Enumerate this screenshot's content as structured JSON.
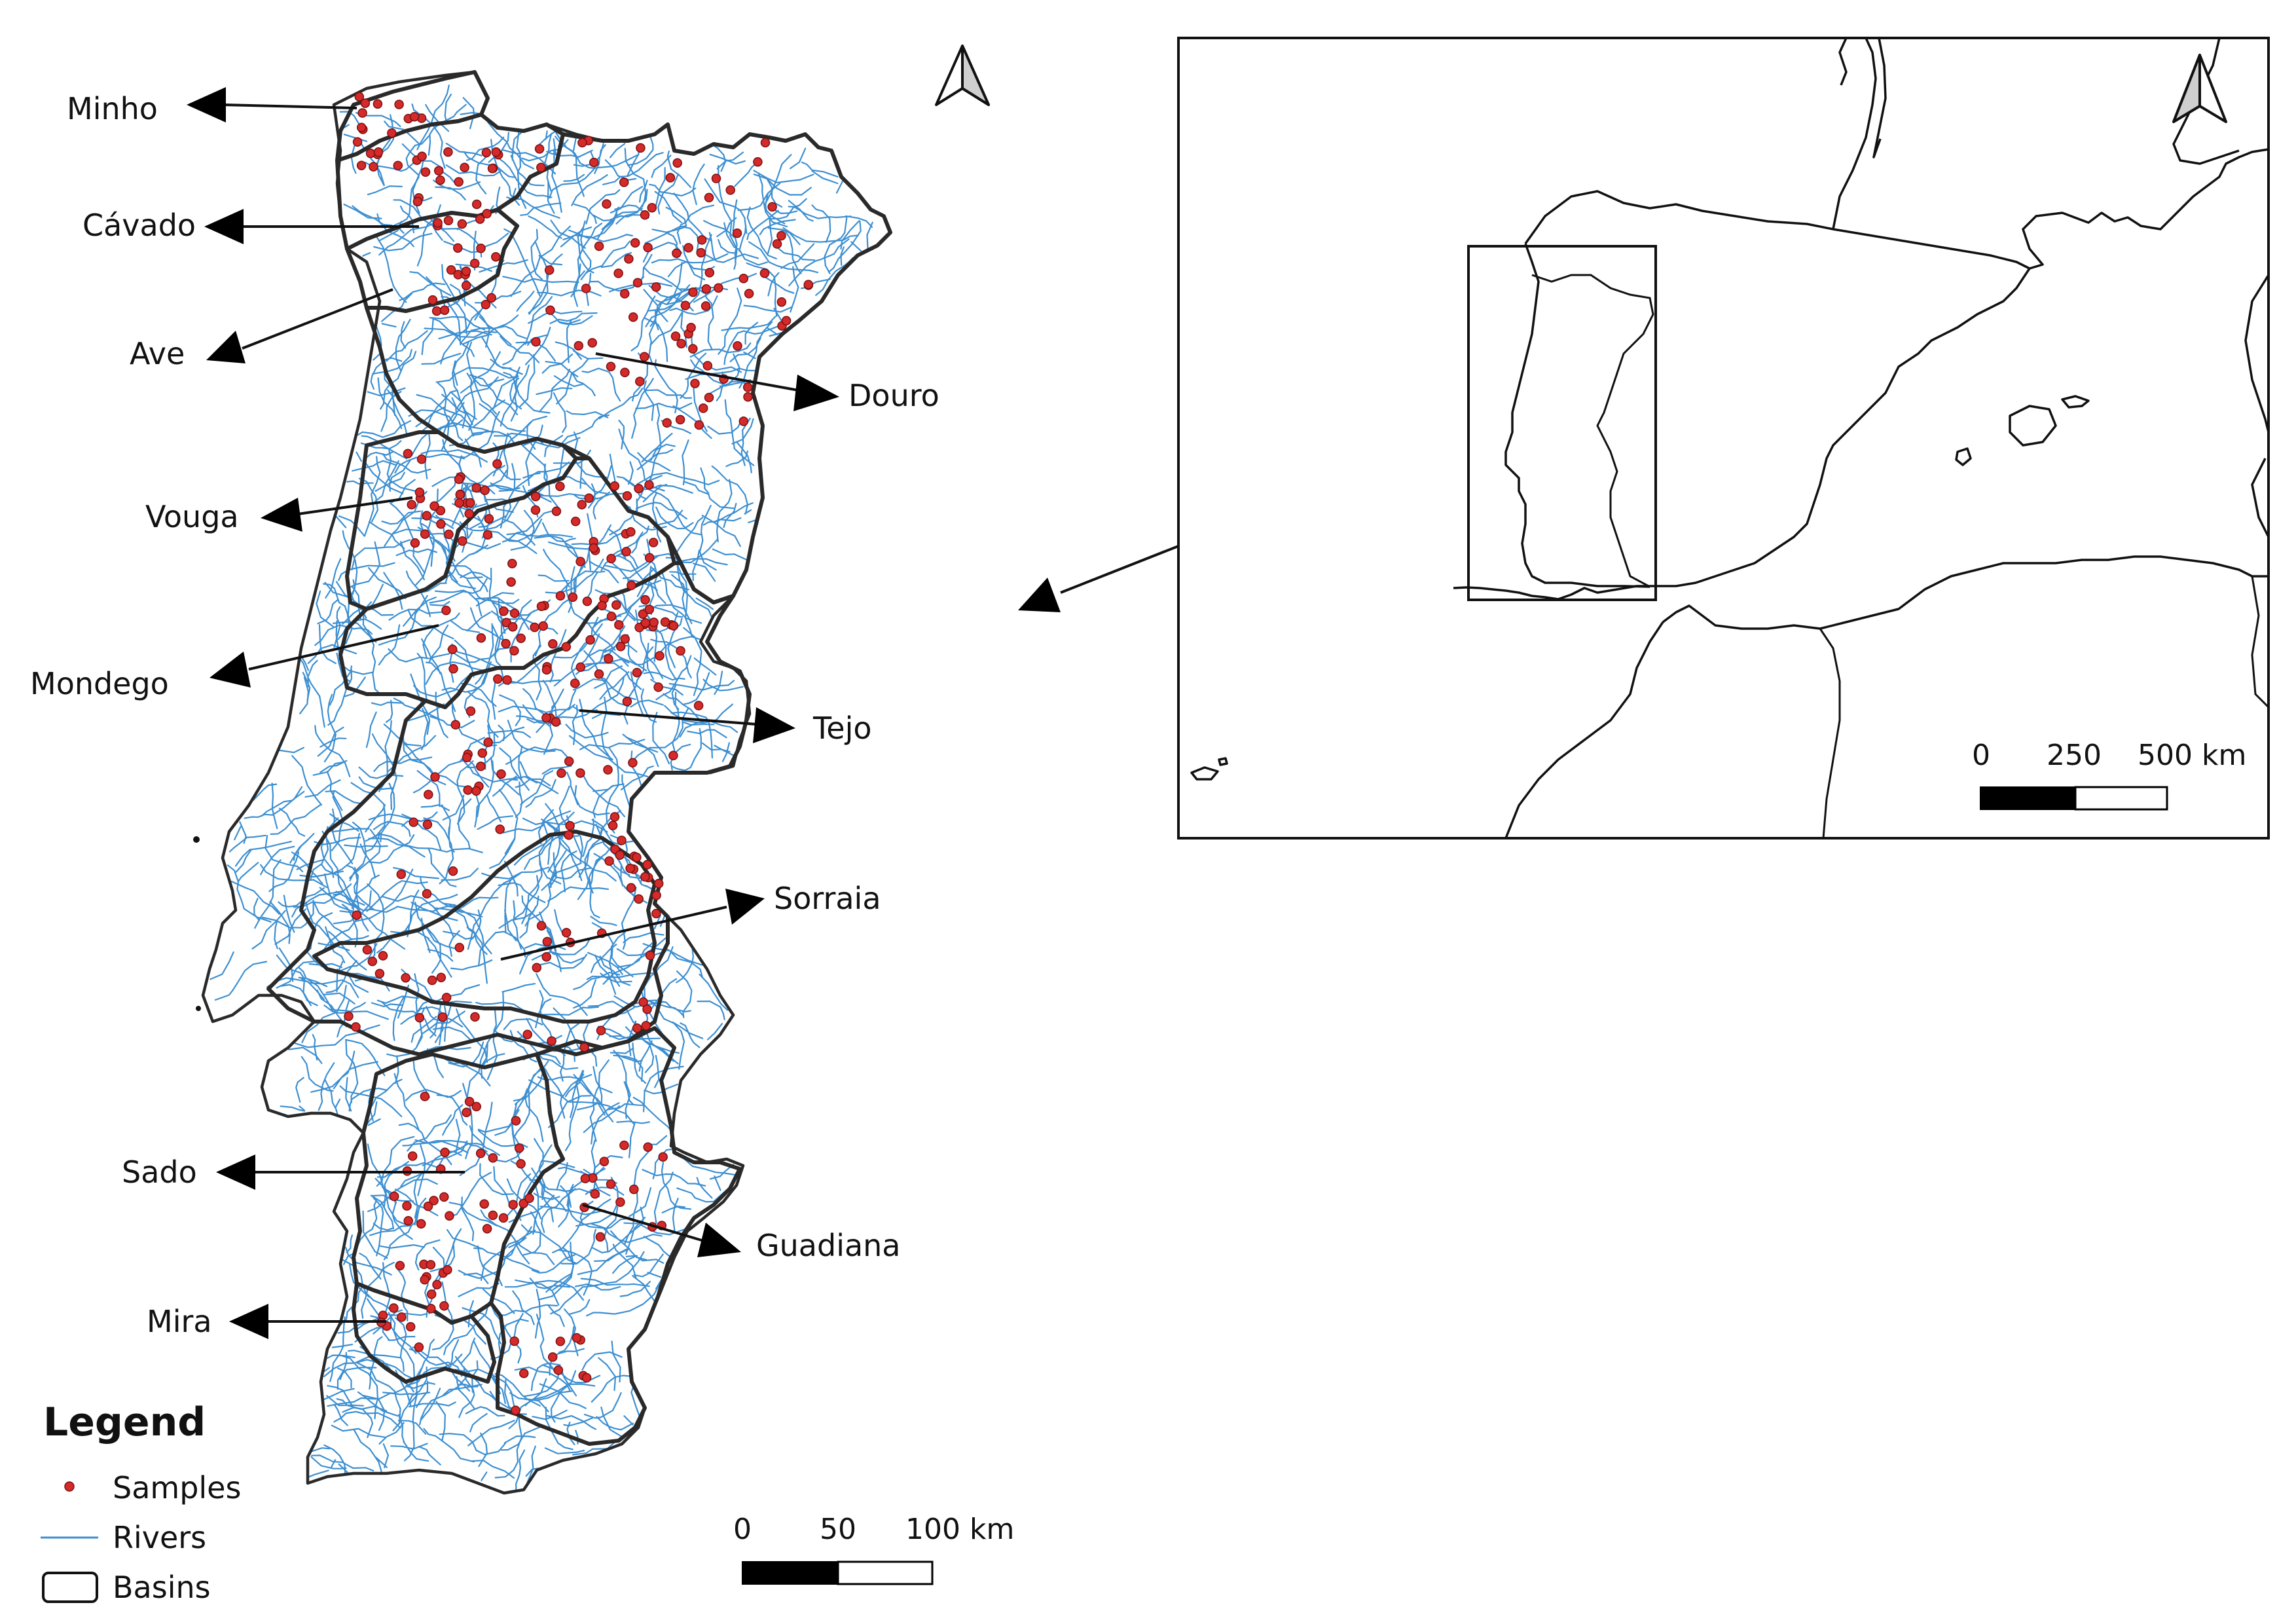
{
  "colors": {
    "river": "#3d8fd1",
    "sample": "#d42a2a",
    "basin_line": "#2a2a2a",
    "scale_fill": "#000000"
  },
  "main_map": {
    "north_arrow_icon": "north-arrow-icon",
    "basins": [
      {
        "name": "Minho"
      },
      {
        "name": "Cávado"
      },
      {
        "name": "Ave"
      },
      {
        "name": "Douro"
      },
      {
        "name": "Vouga"
      },
      {
        "name": "Mondego"
      },
      {
        "name": "Tejo"
      },
      {
        "name": "Sorraia"
      },
      {
        "name": "Sado"
      },
      {
        "name": "Guadiana"
      },
      {
        "name": "Mira"
      }
    ],
    "scale_bar": {
      "labels": [
        "0",
        "50",
        "100 km"
      ]
    }
  },
  "inset_map": {
    "north_arrow_icon": "north-arrow-icon",
    "scale_bar": {
      "labels": [
        "0",
        "250",
        "500 km"
      ]
    }
  },
  "legend": {
    "title": "Legend",
    "items": [
      {
        "label": "Samples",
        "icon": "sample-dot-icon"
      },
      {
        "label": "Rivers",
        "icon": "river-line-icon"
      },
      {
        "label": "Basins",
        "icon": "basin-box-icon"
      }
    ]
  }
}
